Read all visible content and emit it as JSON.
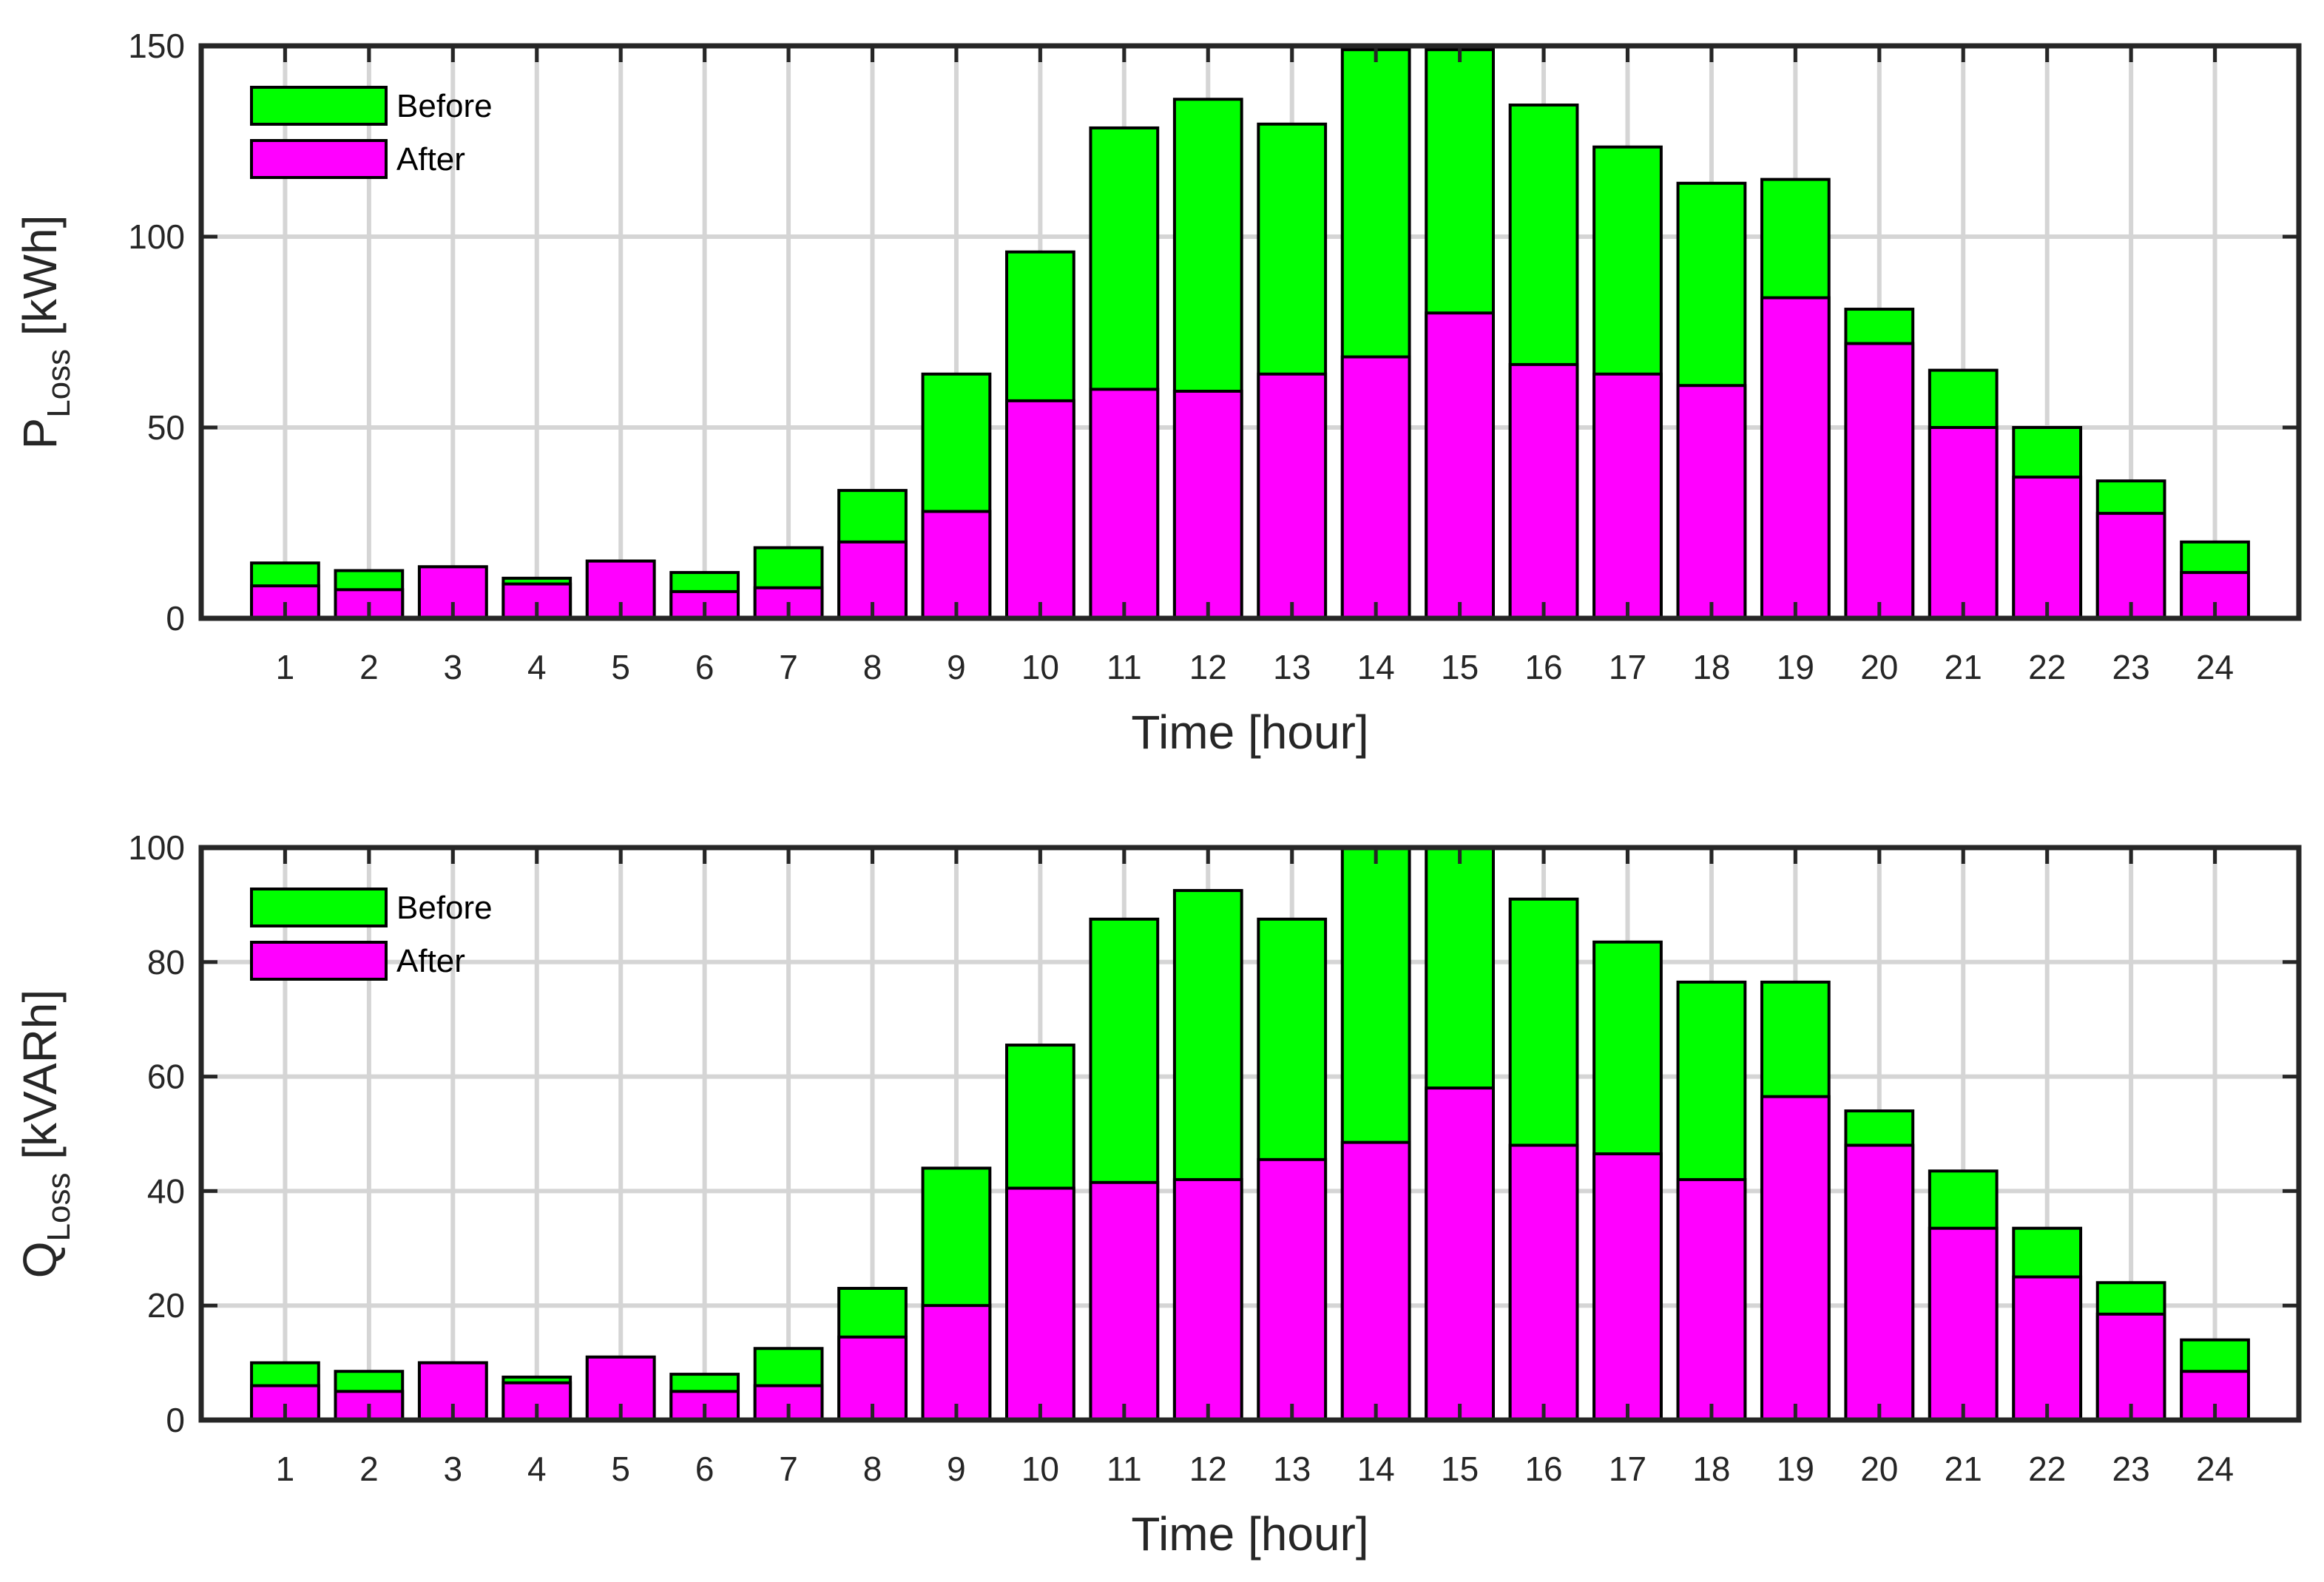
{
  "colors": {
    "before": "#00ff00",
    "after": "#ff00ff"
  },
  "chart_data": [
    {
      "type": "bar",
      "mode": "overlaid",
      "xlabel": "Time [hour]",
      "ylabel": {
        "main": "P",
        "sub": "Loss",
        "unit": " [kWh]"
      },
      "categories": [
        "1",
        "2",
        "3",
        "4",
        "5",
        "6",
        "7",
        "8",
        "9",
        "10",
        "11",
        "12",
        "13",
        "14",
        "15",
        "16",
        "17",
        "18",
        "19",
        "20",
        "21",
        "22",
        "23",
        "24"
      ],
      "ylim": [
        0,
        150
      ],
      "yticks": [
        0,
        50,
        100,
        150
      ],
      "grid": true,
      "legend_position": "top-left",
      "series": [
        {
          "name": "Before",
          "values": [
            14.5,
            12.5,
            13.5,
            10.5,
            15,
            12,
            18.5,
            33.5,
            64,
            96,
            128.5,
            136,
            129.5,
            149,
            149,
            134.5,
            123.5,
            114,
            115,
            81,
            65,
            50,
            36,
            20
          ]
        },
        {
          "name": "After",
          "values": [
            8.5,
            7.5,
            13.5,
            9,
            15,
            7,
            8,
            20,
            28,
            57,
            60,
            59.5,
            64,
            68.5,
            80,
            66.5,
            64,
            61,
            84,
            72,
            50,
            37,
            27.5,
            12
          ]
        }
      ]
    },
    {
      "type": "bar",
      "mode": "overlaid",
      "xlabel": "Time [hour]",
      "ylabel": {
        "main": "Q",
        "sub": "Loss",
        "unit": " [kVARh]"
      },
      "categories": [
        "1",
        "2",
        "3",
        "4",
        "5",
        "6",
        "7",
        "8",
        "9",
        "10",
        "11",
        "12",
        "13",
        "14",
        "15",
        "16",
        "17",
        "18",
        "19",
        "20",
        "21",
        "22",
        "23",
        "24"
      ],
      "ylim": [
        0,
        100
      ],
      "yticks": [
        0,
        20,
        40,
        60,
        80,
        100
      ],
      "grid": true,
      "legend_position": "top-left",
      "series": [
        {
          "name": "Before",
          "values": [
            10,
            8.5,
            10,
            7.5,
            11,
            8,
            12.5,
            23,
            44,
            65.5,
            87.5,
            92.5,
            87.5,
            100.5,
            100.5,
            91,
            83.5,
            76.5,
            76.5,
            54,
            43.5,
            33.5,
            24,
            14
          ]
        },
        {
          "name": "After",
          "values": [
            6,
            5,
            10,
            6.5,
            11,
            5,
            6,
            14.5,
            20,
            40.5,
            41.5,
            42,
            45.5,
            48.5,
            58,
            48,
            46.5,
            42,
            56.5,
            48,
            33.5,
            25,
            18.5,
            8.5
          ]
        }
      ]
    }
  ]
}
